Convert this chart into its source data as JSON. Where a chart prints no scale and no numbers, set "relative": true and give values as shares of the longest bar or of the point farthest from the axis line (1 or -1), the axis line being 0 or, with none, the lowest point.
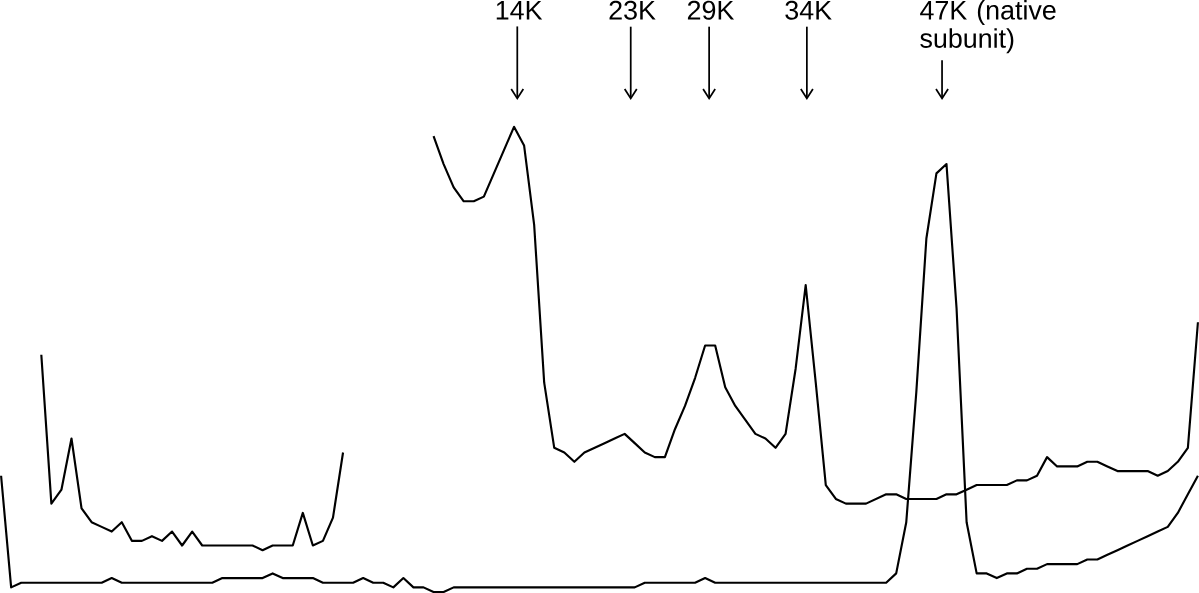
{
  "chart_data": {
    "type": "line",
    "relative": true,
    "categories": [
      null,
      null,
      null,
      null,
      null,
      null,
      null,
      null,
      null,
      null,
      null,
      null,
      null,
      null,
      null,
      null,
      null,
      null,
      null,
      null,
      null,
      null,
      null,
      null,
      null,
      null,
      null,
      null,
      null,
      null,
      null,
      null,
      null,
      null,
      null,
      null,
      null,
      null,
      null,
      null,
      null,
      null,
      null,
      null,
      null,
      null,
      null,
      null,
      null,
      null,
      null,
      null,
      null,
      null,
      null,
      null,
      null,
      null,
      null,
      null,
      null,
      null,
      null,
      null,
      null,
      null,
      null,
      null,
      null,
      null,
      null,
      null,
      null,
      null,
      null,
      null,
      null,
      null,
      null,
      null,
      null,
      null,
      null,
      null,
      null,
      null,
      null,
      null,
      null,
      null,
      null,
      null,
      null,
      null,
      null,
      null,
      null,
      null,
      null,
      null,
      null,
      null,
      null,
      null,
      null,
      null,
      null,
      null,
      null,
      null,
      null,
      null,
      null,
      null,
      null,
      null,
      null,
      null,
      null,
      null,
      null
    ],
    "annotations": [
      "14K",
      "23K",
      "29K",
      "34K",
      "47K (native subunit)"
    ],
    "series": [
      {
        "color": "#000000",
        "values": [
          null,
          0.25,
          0.01,
          0.02,
          0.02,
          0.02,
          0.02,
          0.02,
          0.02,
          0.02,
          0.02,
          0.02,
          0.03,
          0.02,
          0.02,
          0.02,
          0.02,
          0.02,
          0.02,
          0.02,
          0.02,
          0.02,
          0.02,
          0.03,
          0.03,
          0.03,
          0.03,
          0.03,
          0.04,
          0.03,
          0.03,
          0.03,
          0.03,
          0.02,
          0.02,
          0.02,
          0.02,
          0.03,
          0.02,
          0.02,
          0.01,
          0.03,
          0.01,
          0.01,
          0,
          0,
          0.01,
          0.01,
          0.01,
          0.01,
          0.01,
          0.01,
          0.01,
          0.01,
          0.01,
          0.01,
          0.01,
          0.01,
          0.01,
          0.01,
          0.01,
          0.01,
          0.01,
          0.01,
          0.01,
          0.02,
          0.02,
          0.02,
          0.02,
          0.02,
          0.02,
          0.03,
          0.02,
          0.02,
          0.02,
          0.02,
          0.02,
          0.02,
          0.02,
          0.02,
          0.02,
          0.02,
          0.02,
          0.02,
          0.02,
          0.02,
          0.02,
          0.02,
          0.02,
          0.02,
          0.04,
          0.15,
          0.43,
          0.76,
          0.9,
          0.92,
          0.61,
          0.15,
          0.04,
          0.04,
          0.03,
          0.04,
          0.04,
          0.05,
          0.05,
          0.06,
          0.06,
          0.06,
          0.06,
          0.07,
          0.07,
          0.08,
          0.09,
          0.1,
          0.11,
          0.12,
          0.13,
          0.14,
          0.17,
          0.21,
          0.25
        ]
      },
      {
        "color": "#000000",
        "values": [
          null,
          null,
          null,
          null,
          null,
          null,
          null,
          null,
          null,
          null,
          null,
          null,
          null,
          null,
          null,
          null,
          null,
          null,
          null,
          null,
          null,
          null,
          null,
          null,
          null,
          null,
          null,
          null,
          null,
          null,
          null,
          null,
          null,
          null,
          null,
          null,
          null,
          null,
          null,
          null,
          null,
          null,
          null,
          null,
          0.98,
          0.92,
          0.87,
          0.84,
          0.84,
          0.85,
          0.9,
          0.95,
          1,
          0.96,
          0.79,
          0.45,
          0.31,
          0.3,
          0.28,
          0.3,
          0.31,
          0.32,
          0.33,
          0.34,
          0.32,
          0.3,
          0.29,
          0.29,
          0.35,
          0.4,
          0.46,
          0.53,
          0.53,
          0.44,
          0.4,
          0.37,
          0.34,
          0.33,
          0.31,
          0.34,
          0.48,
          0.66,
          0.45,
          0.23,
          0.2,
          0.19,
          0.19,
          0.19,
          0.2,
          0.21,
          0.21,
          0.2,
          0.2,
          0.2,
          0.2,
          0.21,
          0.21,
          0.22,
          0.23,
          0.23,
          0.23,
          0.23,
          0.24,
          0.24,
          0.25,
          0.29,
          0.27,
          0.27,
          0.27,
          0.28,
          0.28,
          0.27,
          0.26,
          0.26,
          0.26,
          0.26,
          0.25,
          0.26,
          0.28,
          0.31,
          0.58
        ]
      },
      {
        "color": "#000000",
        "values": [
          null,
          null,
          null,
          null,
          null,
          0.51,
          0.19,
          0.22,
          0.33,
          0.18,
          0.15,
          0.14,
          0.13,
          0.15,
          0.11,
          0.11,
          0.12,
          0.11,
          0.13,
          0.1,
          0.13,
          0.1,
          0.1,
          0.1,
          0.1,
          0.1,
          0.1,
          0.09,
          0.1,
          0.1,
          0.1,
          0.17,
          0.1,
          0.11,
          0.16,
          0.3,
          null,
          null,
          null,
          null,
          null,
          null,
          null,
          null,
          null,
          null,
          null,
          null,
          null,
          null,
          null,
          null,
          null,
          null,
          null,
          null,
          null,
          null,
          null,
          null,
          null,
          null,
          null,
          null,
          null,
          null,
          null,
          null,
          null,
          null,
          null,
          null,
          null,
          null,
          null,
          null,
          null,
          null,
          null,
          null,
          null,
          null,
          null,
          null,
          null,
          null,
          null,
          null,
          null,
          null,
          null,
          null,
          null,
          null,
          null,
          null,
          null,
          null,
          null,
          null,
          null,
          null,
          null,
          null,
          null,
          null,
          null,
          null,
          null,
          null,
          null,
          null,
          null,
          null,
          null,
          null,
          null,
          null,
          null,
          null,
          null
        ]
      }
    ]
  }
}
